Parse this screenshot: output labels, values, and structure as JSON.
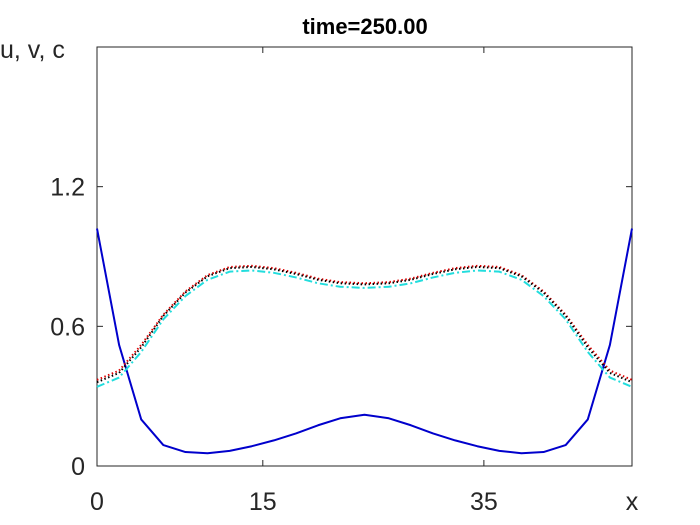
{
  "chart_data": {
    "type": "line",
    "title": "time=250.00",
    "xlabel": "x",
    "ylabel": "u, v, c",
    "x": [
      0,
      2,
      4,
      6,
      8,
      10,
      12,
      14,
      16,
      18,
      20,
      22,
      24.2,
      26.4,
      28.4,
      30.4,
      32.4,
      34.4,
      36.4,
      38.4,
      40.4,
      42.4,
      44.4,
      46.4,
      48.4
    ],
    "series": [
      {
        "color": "#0000cc",
        "style": "solid",
        "values": [
          1.02,
          0.52,
          0.2,
          0.09,
          0.06,
          0.055,
          0.065,
          0.085,
          0.11,
          0.14,
          0.175,
          0.205,
          0.22,
          0.205,
          0.175,
          0.14,
          0.11,
          0.085,
          0.065,
          0.055,
          0.06,
          0.09,
          0.2,
          0.52,
          1.02
        ]
      },
      {
        "color": "#dd0000",
        "style": "dotted",
        "values": [
          0.37,
          0.41,
          0.52,
          0.65,
          0.75,
          0.82,
          0.855,
          0.86,
          0.85,
          0.83,
          0.805,
          0.79,
          0.785,
          0.79,
          0.805,
          0.83,
          0.85,
          0.86,
          0.855,
          0.82,
          0.75,
          0.65,
          0.52,
          0.41,
          0.37
        ]
      },
      {
        "color": "#000000",
        "style": "dotted",
        "values": [
          0.36,
          0.4,
          0.51,
          0.645,
          0.745,
          0.815,
          0.85,
          0.855,
          0.845,
          0.825,
          0.8,
          0.785,
          0.78,
          0.785,
          0.8,
          0.825,
          0.845,
          0.855,
          0.85,
          0.815,
          0.745,
          0.645,
          0.51,
          0.4,
          0.36
        ]
      },
      {
        "color": "#22dddd",
        "style": "dashdot",
        "values": [
          0.34,
          0.38,
          0.49,
          0.63,
          0.73,
          0.8,
          0.835,
          0.84,
          0.83,
          0.81,
          0.785,
          0.77,
          0.765,
          0.77,
          0.785,
          0.81,
          0.83,
          0.84,
          0.835,
          0.8,
          0.73,
          0.63,
          0.49,
          0.38,
          0.34
        ]
      }
    ],
    "xlim": [
      0,
      48.4
    ],
    "ylim": [
      0,
      1.8
    ],
    "xticks": [
      0,
      15,
      35
    ],
    "yticks": [
      0,
      0.6,
      1.2
    ]
  }
}
